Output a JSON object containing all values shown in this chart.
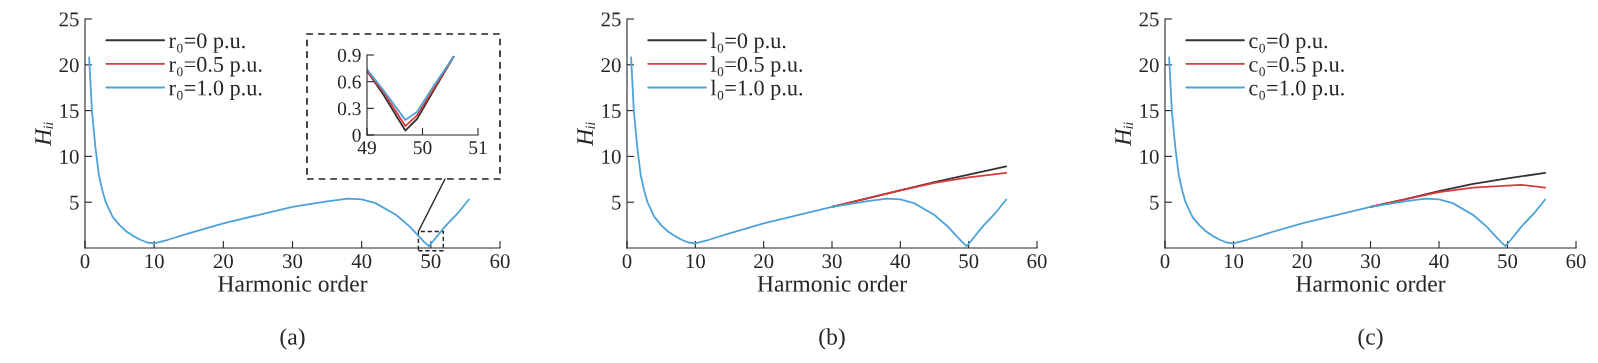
{
  "chart_data": [
    {
      "type": "line",
      "title": "(a)",
      "xlabel": "Harmonic order",
      "ylabel": "Hᵢᵢ",
      "xlim": [
        0,
        60
      ],
      "ylim": [
        0,
        25
      ],
      "xticks": [
        0,
        10,
        20,
        30,
        40,
        50,
        60
      ],
      "yticks": [
        5,
        10,
        15,
        20,
        25
      ],
      "legend": "top left",
      "series": [
        {
          "name": "r₀=0 p.u.",
          "color": "#333333"
        },
        {
          "name": "r₀=0.5 p.u.",
          "color": "#d93a3a"
        },
        {
          "name": "r₀=1.0 p.u.",
          "color": "#4da3d8",
          "x": [
            0.6,
            1,
            1.5,
            2,
            2.5,
            3,
            4,
            5,
            6,
            7,
            8,
            9,
            10,
            12,
            15,
            20,
            25,
            30,
            35,
            38,
            40,
            42,
            45,
            47,
            48,
            49,
            49.7,
            50.5,
            52,
            54,
            55.5
          ],
          "values": [
            20.8,
            15,
            11,
            8,
            6.3,
            5,
            3.4,
            2.5,
            1.8,
            1.3,
            0.9,
            0.6,
            0.5,
            0.9,
            1.6,
            2.7,
            3.6,
            4.5,
            5.1,
            5.4,
            5.3,
            4.9,
            3.6,
            2.3,
            1.5,
            0.7,
            0.2,
            0.9,
            2.3,
            3.9,
            5.3
          ]
        }
      ]
    },
    {
      "type": "line",
      "title": "(b)",
      "xlabel": "Harmonic order",
      "ylabel": "Hᵢᵢ",
      "xlim": [
        0,
        60
      ],
      "ylim": [
        0,
        25
      ],
      "xticks": [
        0,
        10,
        20,
        30,
        40,
        50,
        60
      ],
      "yticks": [
        5,
        10,
        15,
        20,
        25
      ],
      "legend": "top left",
      "series": [
        {
          "name": "l₀=0 p.u.",
          "color": "#333333",
          "x": [
            30,
            45,
            50,
            55.5
          ],
          "values": [
            4.5,
            7.2,
            8.0,
            8.9
          ]
        },
        {
          "name": "l₀=0.5 p.u.",
          "color": "#d93a3a",
          "x": [
            30,
            35,
            40,
            45,
            50,
            55.5
          ],
          "values": [
            4.5,
            5.4,
            6.3,
            7.1,
            7.7,
            8.2
          ]
        },
        {
          "name": "l₀=1.0 p.u.",
          "color": "#4da3d8",
          "x": [
            0.6,
            1,
            1.5,
            2,
            2.5,
            3,
            4,
            5,
            6,
            7,
            8,
            9,
            10,
            12,
            15,
            20,
            25,
            30,
            35,
            38,
            40,
            42,
            45,
            47,
            48,
            49,
            49.7,
            50.5,
            52,
            54,
            55.5
          ],
          "values": [
            20.8,
            15,
            11,
            8,
            6.3,
            5,
            3.4,
            2.5,
            1.8,
            1.3,
            0.9,
            0.6,
            0.5,
            0.9,
            1.6,
            2.7,
            3.6,
            4.5,
            5.1,
            5.4,
            5.3,
            4.9,
            3.6,
            2.3,
            1.5,
            0.7,
            0.2,
            0.9,
            2.3,
            3.9,
            5.3
          ]
        }
      ]
    },
    {
      "type": "line",
      "title": "(c)",
      "xlabel": "Harmonic order",
      "ylabel": "Hᵢᵢ",
      "xlim": [
        0,
        60
      ],
      "ylim": [
        0,
        25
      ],
      "xticks": [
        0,
        10,
        20,
        30,
        40,
        50,
        60
      ],
      "yticks": [
        5,
        10,
        15,
        20,
        25
      ],
      "legend": "top left",
      "series": [
        {
          "name": "c₀=0 p.u.",
          "color": "#333333",
          "x": [
            30,
            35,
            40,
            45,
            50,
            55.5
          ],
          "values": [
            4.5,
            5.3,
            6.2,
            7.0,
            7.6,
            8.2
          ]
        },
        {
          "name": "c₀=0.5 p.u.",
          "color": "#d93a3a",
          "x": [
            30,
            35,
            40,
            45,
            50,
            52,
            55.5
          ],
          "values": [
            4.5,
            5.3,
            6.1,
            6.6,
            6.8,
            6.9,
            6.6
          ]
        },
        {
          "name": "c₀=1.0 p.u.",
          "color": "#4da3d8",
          "x": [
            0.6,
            1,
            1.5,
            2,
            2.5,
            3,
            4,
            5,
            6,
            7,
            8,
            9,
            10,
            12,
            15,
            20,
            25,
            30,
            35,
            38,
            40,
            42,
            45,
            47,
            48,
            49,
            49.7,
            50.5,
            52,
            54,
            55.5
          ],
          "values": [
            20.8,
            15,
            11,
            8,
            6.3,
            5,
            3.4,
            2.5,
            1.8,
            1.3,
            0.9,
            0.6,
            0.5,
            0.9,
            1.6,
            2.7,
            3.6,
            4.5,
            5.1,
            5.4,
            5.3,
            4.9,
            3.6,
            2.3,
            1.5,
            0.7,
            0.2,
            0.9,
            2.3,
            3.9,
            5.3
          ]
        }
      ]
    },
    {
      "type": "line",
      "xlim": [
        49,
        51
      ],
      "ylim": [
        0,
        0.9
      ],
      "xticks": [
        49,
        50,
        51
      ],
      "yticks": [
        0,
        0.3,
        0.6,
        0.9
      ],
      "series": [
        {
          "color": "#333333",
          "x": [
            49,
            49.3,
            49.69,
            49.9,
            50.2,
            50.56
          ],
          "values": [
            0.72,
            0.45,
            0.05,
            0.18,
            0.5,
            0.88
          ]
        },
        {
          "color": "#d93a3a",
          "x": [
            49,
            49.3,
            49.69,
            49.9,
            50.2,
            50.56
          ],
          "values": [
            0.72,
            0.48,
            0.1,
            0.22,
            0.52,
            0.88
          ]
        },
        {
          "color": "#4da3d8",
          "x": [
            49,
            49.3,
            49.69,
            49.9,
            50.2,
            50.56
          ],
          "values": [
            0.74,
            0.5,
            0.17,
            0.26,
            0.55,
            0.88
          ]
        }
      ]
    }
  ]
}
